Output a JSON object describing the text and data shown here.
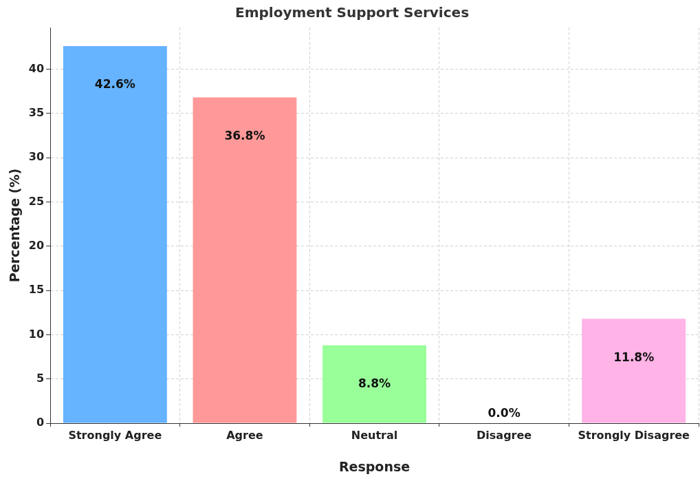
{
  "chart_data": {
    "type": "bar",
    "title": "Employment Support Services",
    "xlabel": "Response",
    "ylabel": "Percentage (%)",
    "categories": [
      "Strongly Agree",
      "Agree",
      "Neutral",
      "Disagree",
      "Strongly Disagree"
    ],
    "values": [
      42.6,
      36.8,
      8.8,
      0.0,
      11.8
    ],
    "colors": [
      "#66b3ff",
      "#ff9999",
      "#99ff99",
      "#ffcc99",
      "#ffb3e6"
    ],
    "value_labels": [
      "42.6%",
      "36.8%",
      "8.8%",
      "0.0%",
      "11.8%"
    ],
    "ylim": [
      0,
      44.7
    ],
    "yticks": [
      0,
      5,
      10,
      15,
      20,
      25,
      30,
      35,
      40
    ],
    "grid": true,
    "line_style": "dashed"
  }
}
